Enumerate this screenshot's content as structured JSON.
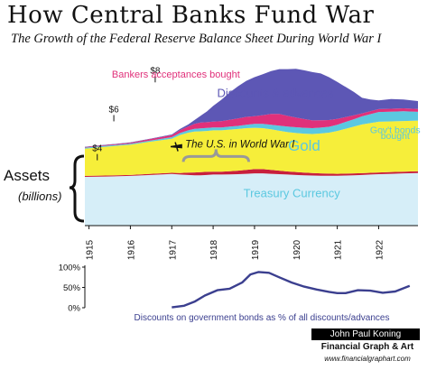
{
  "title": "How Central Banks Fund War",
  "subtitle": "The Growth of the Federal Reserve Balance Sheet During World War I",
  "assets_label": "Assets",
  "assets_unit": "(billions)",
  "credit": {
    "name": "John Paul Koning",
    "company": "Financial Graph & Art",
    "url": "www.financialgraphart.com"
  },
  "colors": {
    "treasury": "#d6eef8",
    "gold": "#f6ee3a",
    "govt_bonds": "#5bc8e0",
    "bankers": "#e0307a",
    "discounts": "#5d57b5",
    "small_red": "#c8203c",
    "line": "#3b3f8f"
  },
  "chart_data": [
    {
      "type": "area",
      "stacked": true,
      "x_ticks": [
        "1915",
        "1916",
        "1917",
        "1918",
        "1919",
        "1920",
        "1921",
        "1922"
      ],
      "y_labels": [
        "$4",
        "$6",
        "$8"
      ],
      "x_range": [
        1914.9,
        1922.95
      ],
      "y_range": [
        0,
        8.8
      ],
      "grid": false,
      "legend": "none",
      "x": [
        1914.9,
        1915.4,
        1916.0,
        1916.5,
        1917.0,
        1917.2,
        1917.4,
        1917.55,
        1917.7,
        1917.85,
        1918.0,
        1918.2,
        1918.4,
        1918.6,
        1918.8,
        1919.0,
        1919.2,
        1919.4,
        1919.6,
        1919.8,
        1920.0,
        1920.2,
        1920.4,
        1920.6,
        1920.8,
        1921.0,
        1921.2,
        1921.4,
        1921.6,
        1921.8,
        1922.0,
        1922.3,
        1922.6,
        1922.95
      ],
      "series": [
        {
          "name": "Treasury Currency",
          "color_key": "treasury",
          "values": [
            2.5,
            2.52,
            2.55,
            2.6,
            2.65,
            2.62,
            2.6,
            2.58,
            2.58,
            2.6,
            2.62,
            2.62,
            2.63,
            2.64,
            2.66,
            2.68,
            2.68,
            2.66,
            2.64,
            2.62,
            2.6,
            2.58,
            2.57,
            2.56,
            2.56,
            2.56,
            2.57,
            2.58,
            2.6,
            2.62,
            2.64,
            2.66,
            2.68,
            2.7
          ]
        },
        {
          "name": "",
          "color_key": "small_red",
          "values": [
            0.05,
            0.05,
            0.05,
            0.06,
            0.06,
            0.08,
            0.12,
            0.15,
            0.16,
            0.16,
            0.15,
            0.15,
            0.16,
            0.18,
            0.2,
            0.22,
            0.22,
            0.2,
            0.18,
            0.16,
            0.15,
            0.14,
            0.13,
            0.12,
            0.11,
            0.1,
            0.1,
            0.1,
            0.09,
            0.09,
            0.09,
            0.09,
            0.09,
            0.09
          ]
        },
        {
          "name": "Gold",
          "color_key": "gold",
          "values": [
            1.4,
            1.48,
            1.55,
            1.65,
            1.75,
            1.95,
            2.05,
            2.1,
            2.1,
            2.1,
            2.12,
            2.12,
            2.14,
            2.14,
            2.14,
            2.12,
            2.1,
            2.08,
            2.05,
            2.02,
            2.0,
            2.0,
            2.0,
            2.05,
            2.1,
            2.2,
            2.3,
            2.4,
            2.5,
            2.55,
            2.6,
            2.6,
            2.6,
            2.6
          ]
        },
        {
          "name": "Gov't bonds bought",
          "color_key": "govt_bonds",
          "values": [
            0.05,
            0.05,
            0.05,
            0.06,
            0.08,
            0.1,
            0.12,
            0.14,
            0.15,
            0.15,
            0.15,
            0.15,
            0.15,
            0.16,
            0.18,
            0.2,
            0.22,
            0.24,
            0.26,
            0.28,
            0.3,
            0.3,
            0.3,
            0.3,
            0.3,
            0.32,
            0.35,
            0.38,
            0.42,
            0.46,
            0.5,
            0.5,
            0.5,
            0.45
          ]
        },
        {
          "name": "Bankers acceptances bought",
          "color_key": "bankers",
          "values": [
            0.03,
            0.03,
            0.05,
            0.08,
            0.1,
            0.15,
            0.2,
            0.25,
            0.3,
            0.3,
            0.3,
            0.32,
            0.35,
            0.38,
            0.4,
            0.4,
            0.45,
            0.55,
            0.6,
            0.55,
            0.5,
            0.45,
            0.4,
            0.38,
            0.35,
            0.3,
            0.25,
            0.2,
            0.15,
            0.15,
            0.15,
            0.15,
            0.15,
            0.15
          ]
        },
        {
          "name": "Discounts & advances",
          "color_key": "discounts",
          "values": [
            0.02,
            0.02,
            0.02,
            0.02,
            0.04,
            0.06,
            0.1,
            0.2,
            0.35,
            0.55,
            0.8,
            1.1,
            1.4,
            1.65,
            1.85,
            2.0,
            2.1,
            2.2,
            2.3,
            2.4,
            2.5,
            2.5,
            2.48,
            2.4,
            2.2,
            1.9,
            1.55,
            1.2,
            0.8,
            0.6,
            0.45,
            0.5,
            0.45,
            0.4
          ]
        }
      ],
      "annotations": [
        {
          "text": "Discounts & advances",
          "x": 1919.5,
          "y": 6.6,
          "color_key": "discounts",
          "size": 13
        },
        {
          "text": "Bankers acceptances bought",
          "x": 1917.1,
          "y": 7.6,
          "color_key": "bankers",
          "size": 11
        },
        {
          "text": "Gov't bonds",
          "x": 1922.4,
          "y": 4.75,
          "color_key": "govt_bonds",
          "size": 10.5
        },
        {
          "text": "bought",
          "x": 1922.4,
          "y": 4.45,
          "color_key": "govt_bonds",
          "size": 10.5
        },
        {
          "text": "Gold",
          "x": 1920.2,
          "y": 3.85,
          "color_key": "govt_bonds",
          "size": 17
        },
        {
          "text": "Treasury Currency",
          "x": 1919.9,
          "y": 1.45,
          "color_key": "govt_bonds",
          "size": 13
        }
      ],
      "war_label": "The U.S. in World War I",
      "war_start": 1917.28,
      "war_end": 1918.86
    },
    {
      "type": "line",
      "label": "Discounts on government bonds as % of all discounts/advances",
      "y_ticks": [
        "100%",
        "50%",
        "0%"
      ],
      "y_range": [
        0,
        100
      ],
      "x_range": [
        1914.9,
        1922.95
      ],
      "color_key": "line",
      "x": [
        1917.0,
        1917.3,
        1917.55,
        1917.8,
        1918.1,
        1918.4,
        1918.7,
        1918.9,
        1919.1,
        1919.35,
        1919.6,
        1919.9,
        1920.2,
        1920.5,
        1920.8,
        1921.0,
        1921.2,
        1921.5,
        1921.8,
        1922.1,
        1922.4,
        1922.75
      ],
      "values": [
        1,
        5,
        15,
        30,
        43,
        47,
        62,
        82,
        88,
        86,
        75,
        62,
        52,
        45,
        39,
        36,
        36,
        43,
        42,
        37,
        40,
        54
      ]
    }
  ]
}
